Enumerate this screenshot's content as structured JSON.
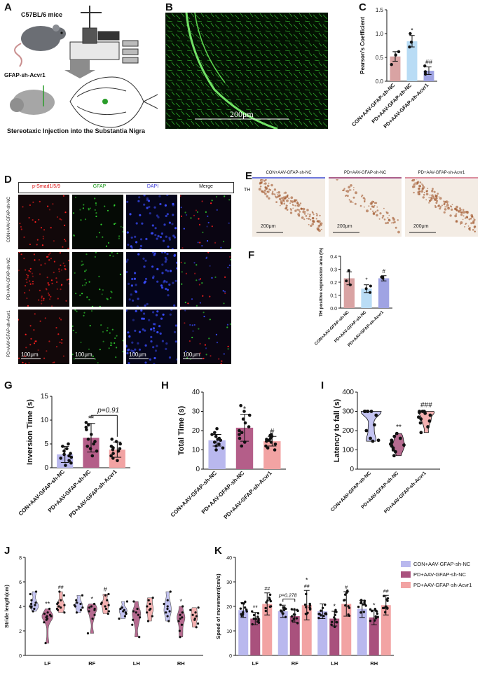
{
  "panels": {
    "A": {
      "label": "A",
      "mouse_text": "C57BL/6 mice",
      "virus_text": "GFAP-sh-Acvr1",
      "caption": "Stereotaxic Injection into the Substantia Nigra"
    },
    "B": {
      "label": "B",
      "scale": "200μm"
    },
    "C": {
      "label": "C"
    },
    "D": {
      "label": "D",
      "columns": [
        "p-Smad1/5/9",
        "GFAP",
        "DAPI",
        "Merge"
      ],
      "rows": [
        "CON+AAV-GFAP-sh-NC",
        "PD+AAV-GFAP-sh-NC",
        "PD+AAV-GFAP-sh-Acvr1"
      ],
      "scale": "100μm"
    },
    "E": {
      "label": "E",
      "columns": [
        "CON+AAV-GFAP-sh-NC",
        "PD+AAV-GFAP-sh-NC",
        "PD+AAV-GFAP-sh-Acvr1"
      ],
      "row": "TH",
      "scale": "200μm"
    },
    "F": {
      "label": "F"
    },
    "G": {
      "label": "G"
    },
    "H": {
      "label": "H"
    },
    "I": {
      "label": "I"
    },
    "J": {
      "label": "J"
    },
    "K": {
      "label": "K"
    }
  },
  "legend": {
    "items": [
      {
        "name": "CON+AAV-GFAP-sh-NC",
        "color": "#b9b8ee"
      },
      {
        "name": "PD+AAV-GFAP-sh-NC",
        "color": "#a9517d"
      },
      {
        "name": "PD+AAV-GFAP-sh-Acvr1",
        "color": "#f2a3a3"
      }
    ]
  },
  "chart_data": [
    {
      "id": "C",
      "type": "bar",
      "categories": [
        "CON+AAV-GFAP-sh-NC",
        "PD+AAV-GFAP-sh-NC",
        "PD+AAV-GFAP-sh-Acvr1"
      ],
      "values": [
        0.52,
        0.84,
        0.22
      ],
      "errors": [
        0.1,
        0.12,
        0.08
      ],
      "points": [
        [
          0.62,
          0.35,
          0.55
        ],
        [
          1.0,
          0.82,
          0.72
        ],
        [
          0.32,
          0.15,
          0.2
        ]
      ],
      "colors": [
        "#d9a3a3",
        "#b9dcf5",
        "#9fa3e3"
      ],
      "annotations": [
        "",
        "*",
        "##"
      ],
      "ylabel": "Pearson's Coefficient",
      "ylim": [
        0,
        1.5
      ],
      "yticks": [
        "0.0",
        "0.5",
        "1.0",
        "1.5"
      ]
    },
    {
      "id": "F",
      "type": "bar",
      "categories": [
        "CON+AAV-GFAP-sh-NC",
        "PD+AAV-GFAP-sh-NC",
        "PD+AAV-GFAP-sh-Acvr1"
      ],
      "values": [
        0.23,
        0.15,
        0.23
      ],
      "errors": [
        0.05,
        0.03,
        0.02
      ],
      "points": [
        [
          0.29,
          0.18,
          0.21
        ],
        [
          0.17,
          0.12,
          0.15
        ],
        [
          0.24,
          0.23,
          0.24
        ]
      ],
      "colors": [
        "#d9a3a3",
        "#b9dcf5",
        "#9fa3e3"
      ],
      "annotations": [
        "",
        "*",
        "#"
      ],
      "ylabel": "TH positive expression area (%)",
      "ylim": [
        0,
        0.4
      ],
      "yticks": [
        "0.0",
        "0.1",
        "0.2",
        "0.3",
        "0.4"
      ]
    },
    {
      "id": "G",
      "type": "bar",
      "categories": [
        "CON+AAV-GFAP-sh-NC",
        "PD+AAV-GFAP-sh-NC",
        "PD+AAV-GFAP-sh-Acvr1"
      ],
      "values": [
        2.8,
        6.3,
        3.8
      ],
      "errors": [
        1.7,
        3.0,
        1.6
      ],
      "points": [
        [
          0.5,
          1.0,
          1.5,
          2.0,
          2.2,
          2.5,
          2.8,
          3.0,
          3.5,
          4.0,
          4.5,
          5.0
        ],
        [
          2.5,
          3.5,
          4.0,
          4.5,
          5.0,
          5.5,
          6.0,
          7.0,
          8.0,
          8.5,
          9.0,
          9.5
        ],
        [
          1.5,
          2.0,
          2.5,
          3.0,
          3.5,
          3.8,
          4.0,
          4.2,
          4.5,
          5.0,
          5.5,
          6.0
        ]
      ],
      "colors": [
        "#b9b8ee",
        "#b45e89",
        "#f2a3a3"
      ],
      "annotations": [
        "",
        "**",
        ""
      ],
      "comparison": "p=0.91",
      "ylabel": "Inversion Time  (s)",
      "ylim": [
        0,
        15
      ],
      "yticks": [
        "0",
        "5",
        "10",
        "15"
      ]
    },
    {
      "id": "H",
      "type": "bar",
      "categories": [
        "CON+AAV-GFAP-sh-NC",
        "PD+AAV-GFAP-sh-NC",
        "PD+AAV-GFAP-sh-Acvr1"
      ],
      "values": [
        15,
        21.5,
        14.5
      ],
      "errors": [
        3,
        7,
        2.5
      ],
      "points": [
        [
          10,
          11,
          12,
          13,
          14,
          15,
          15.5,
          16,
          17,
          18,
          19,
          21
        ],
        [
          12,
          14,
          16,
          18,
          19,
          20,
          22,
          24,
          26,
          28,
          30,
          33
        ],
        [
          10,
          11,
          12,
          13,
          14,
          14.5,
          15,
          15.5,
          16,
          17,
          17.5,
          18
        ]
      ],
      "colors": [
        "#b9b8ee",
        "#b45e89",
        "#f2a3a3"
      ],
      "annotations": [
        "",
        "*",
        "#"
      ],
      "ylabel": "Total Time (s)",
      "ylim": [
        0,
        40
      ],
      "yticks": [
        "0",
        "10",
        "20",
        "30",
        "40"
      ]
    },
    {
      "id": "I",
      "type": "violin",
      "categories": [
        "CON+AAV-GFAP-sh-NC",
        "PD+AAV-GFAP-sh-NC",
        "PD+AAV-GFAP-sh-Acvr1"
      ],
      "points": [
        [
          145,
          150,
          160,
          200,
          230,
          280,
          300,
          300,
          300,
          300,
          300,
          300
        ],
        [
          70,
          90,
          100,
          110,
          120,
          125,
          130,
          140,
          150,
          160,
          170,
          185
        ],
        [
          190,
          220,
          240,
          250,
          260,
          270,
          280,
          290,
          295,
          300,
          300,
          300
        ]
      ],
      "colors": [
        "#b9b8ee",
        "#a9517d",
        "#f2a3a3"
      ],
      "annotations": [
        "",
        "**",
        "###"
      ],
      "ylabel": "Latency to fall (s)",
      "ylim": [
        0,
        400
      ],
      "yticks": [
        "0",
        "100",
        "200",
        "300",
        "400"
      ]
    },
    {
      "id": "J",
      "type": "violin",
      "categories": [
        "LF",
        "RF",
        "LH",
        "RH"
      ],
      "series_colors": [
        "#b9b8ee",
        "#a9517d",
        "#f2a3a3"
      ],
      "groups": [
        [
          [
            3.6,
            3.8,
            3.9,
            4.0,
            4.0,
            4.1,
            4.2,
            4.3,
            4.5,
            5.0,
            5.2
          ],
          [
            1.0,
            2.7,
            2.9,
            3.0,
            3.1,
            3.2,
            3.2,
            3.3,
            3.4,
            3.5,
            3.8
          ],
          [
            3.5,
            3.7,
            3.8,
            3.9,
            4.0,
            4.1,
            4.2,
            4.3,
            4.5,
            4.9,
            5.2
          ]
        ],
        [
          [
            3.5,
            3.7,
            3.9,
            4.0,
            4.1,
            4.2,
            4.3,
            4.5,
            4.9
          ],
          [
            1.8,
            3.0,
            3.3,
            3.6,
            3.7,
            3.8,
            3.9,
            4.0,
            4.2
          ],
          [
            3.4,
            3.6,
            3.8,
            4.0,
            4.1,
            4.2,
            4.3,
            4.5,
            4.9,
            5.0
          ]
        ],
        [
          [
            3.0,
            3.2,
            3.4,
            3.5,
            3.6,
            3.7,
            3.8,
            3.9,
            4.4
          ],
          [
            1.5,
            2.5,
            2.9,
            3.1,
            3.3,
            3.5,
            3.6,
            3.8,
            4.4
          ],
          [
            2.8,
            3.2,
            3.5,
            3.7,
            3.8,
            4.0,
            4.2,
            4.5,
            4.7
          ]
        ],
        [
          [
            2.8,
            3.2,
            3.5,
            3.6,
            3.8,
            4.0,
            4.2,
            4.5,
            5.2
          ],
          [
            1.5,
            2.0,
            2.5,
            2.8,
            3.0,
            3.1,
            3.3,
            3.5,
            4.0
          ],
          [
            2.3,
            2.6,
            2.9,
            3.0,
            3.2,
            3.3,
            3.5,
            3.7,
            3.9
          ]
        ]
      ],
      "annotations": [
        [
          "",
          "**",
          "##"
        ],
        [
          "",
          "*",
          "#"
        ],
        [
          "",
          "",
          ""
        ],
        [
          "",
          "*",
          ""
        ]
      ],
      "ylabel": "Stride length(cm)",
      "ylim": [
        0,
        8
      ],
      "yticks": [
        "0",
        "2",
        "4",
        "6",
        "8"
      ]
    },
    {
      "id": "K",
      "type": "bar",
      "categories": [
        "LF",
        "RF",
        "LH",
        "RH"
      ],
      "series": [
        {
          "name": "CON+AAV-GFAP-sh-NC",
          "values": [
            18.5,
            18,
            18,
            19
          ]
        },
        {
          "name": "PD+AAV-GFAP-sh-NC",
          "values": [
            15,
            16,
            15,
            15.5
          ]
        },
        {
          "name": "PD+AAV-GFAP-sh-Acvr1",
          "values": [
            21,
            20.5,
            21,
            20.5
          ]
        }
      ],
      "errors": [
        [
          3,
          2.5,
          3,
          3.5
        ],
        [
          2.5,
          2.5,
          3,
          3
        ],
        [
          4.5,
          6,
          5,
          4
        ]
      ],
      "colors": [
        "#b9b8ee",
        "#a9517d",
        "#f2a3a3"
      ],
      "annotations": [
        [
          "",
          "**",
          "##"
        ],
        [
          "",
          "",
          "*\n##"
        ],
        [
          "",
          "*",
          "#"
        ],
        [
          "",
          "*",
          "##"
        ]
      ],
      "comparison": "p=0.278",
      "ylabel": "Speed of movement(cm/s)",
      "ylim": [
        0,
        40
      ],
      "yticks": [
        "0",
        "10",
        "20",
        "30",
        "40"
      ]
    }
  ]
}
